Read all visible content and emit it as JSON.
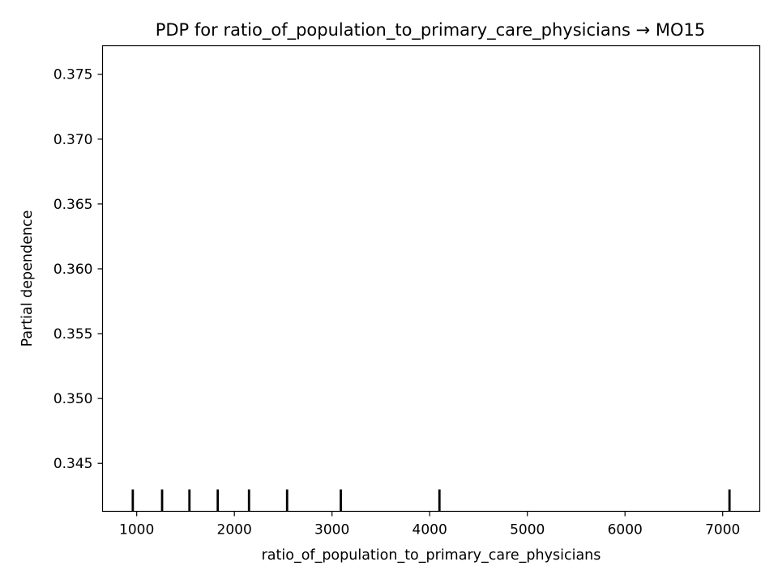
{
  "chart_data": {
    "type": "line",
    "title": "PDP for ratio_of_population_to_primary_care_physicians → MO15",
    "xlabel": "ratio_of_population_to_primary_care_physicians",
    "ylabel": "Partial dependence",
    "xlim": [
      650,
      7380
    ],
    "ylim": [
      0.3413,
      0.3772
    ],
    "xticks": [
      1000,
      2000,
      3000,
      4000,
      5000,
      6000,
      7000
    ],
    "yticks": [
      0.345,
      0.35,
      0.355,
      0.36,
      0.365,
      0.37,
      0.375
    ],
    "ytick_labels": [
      "0.345",
      "0.350",
      "0.355",
      "0.360",
      "0.365",
      "0.370",
      "0.375"
    ],
    "deciles": [
      960,
      1260,
      1540,
      1830,
      2150,
      2540,
      3090,
      4100,
      7070
    ],
    "series": [],
    "grid": false,
    "colors": {
      "rug": "#000000",
      "axes": "#000000"
    }
  }
}
